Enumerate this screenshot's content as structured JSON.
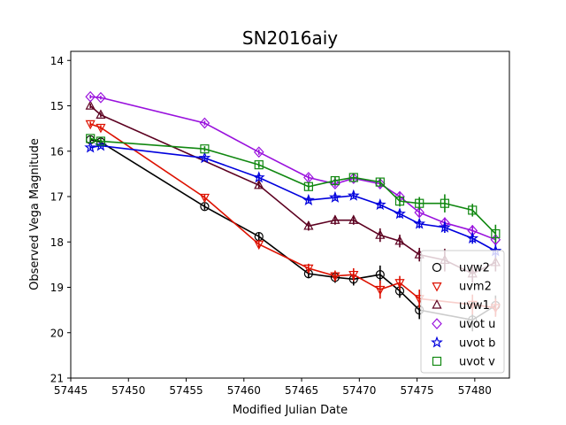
{
  "chart_data": {
    "type": "line",
    "title": "SN2016aiy",
    "xlabel": "Modified Julian Date",
    "ylabel": "Observed Vega Magnitude",
    "xlim": [
      57445,
      57483
    ],
    "ylim": [
      21,
      13.8
    ],
    "y_inverted": true,
    "xticks": [
      57445,
      57450,
      57455,
      57460,
      57465,
      57470,
      57475,
      57480
    ],
    "xtick_labels": [
      "57445",
      "57450",
      "57455",
      "57460",
      "57465",
      "57470",
      "57475",
      "57480"
    ],
    "yticks": [
      14,
      15,
      16,
      17,
      18,
      19,
      20,
      21
    ],
    "ytick_labels": [
      "14",
      "15",
      "16",
      "17",
      "18",
      "19",
      "20",
      "21"
    ],
    "grid": false,
    "legend_position": "lower-right",
    "series": [
      {
        "name": "uvw2",
        "color": "#000000",
        "marker": "circle",
        "x": [
          57446.7,
          57447.6,
          57456.6,
          57461.3,
          57465.6,
          57467.9,
          57469.5,
          57471.8,
          57473.5,
          57475.2,
          57479.8,
          57481.8
        ],
        "y": [
          15.75,
          15.8,
          17.22,
          17.88,
          18.7,
          18.78,
          18.82,
          18.72,
          19.08,
          19.5,
          19.72,
          19.4
        ],
        "err": [
          0.05,
          0.05,
          0.07,
          0.08,
          0.1,
          0.12,
          0.14,
          0.2,
          0.15,
          0.2,
          0.25,
          0.22
        ]
      },
      {
        "name": "uvm2",
        "color": "#dd1100",
        "marker": "triangle-down",
        "x": [
          57446.7,
          57447.6,
          57456.6,
          57461.3,
          57465.6,
          57467.9,
          57469.5,
          57471.8,
          57473.5,
          57475.2,
          57479.8,
          57481.8
        ],
        "y": [
          15.4,
          15.48,
          17.02,
          18.05,
          18.58,
          18.75,
          18.72,
          19.05,
          18.9,
          19.25,
          19.38,
          19.45
        ],
        "err": [
          0.05,
          0.05,
          0.06,
          0.09,
          0.1,
          0.12,
          0.14,
          0.2,
          0.15,
          0.2,
          0.22,
          0.2
        ]
      },
      {
        "name": "uvw1",
        "color": "#5c0020",
        "marker": "triangle-up",
        "x": [
          57446.7,
          57447.6,
          57461.3,
          57465.6,
          57467.9,
          57469.5,
          57471.8,
          57473.5,
          57475.2,
          57477.4,
          57479.8,
          57481.8
        ],
        "y": [
          15.0,
          15.2,
          16.75,
          17.65,
          17.52,
          17.52,
          17.85,
          17.98,
          18.28,
          18.4,
          18.7,
          18.45
        ],
        "err": [
          0.05,
          0.05,
          0.08,
          0.1,
          0.1,
          0.1,
          0.15,
          0.14,
          0.15,
          0.25,
          0.2,
          0.2
        ]
      },
      {
        "name": "uvot u",
        "color": "#9911dd",
        "marker": "diamond",
        "x": [
          57446.7,
          57447.6,
          57456.6,
          57461.3,
          57465.6,
          57467.9,
          57469.5,
          57471.8,
          57473.5,
          57475.2,
          57477.4,
          57479.8,
          57481.8
        ],
        "y": [
          14.8,
          14.82,
          15.38,
          16.02,
          16.58,
          16.72,
          16.6,
          16.72,
          17.0,
          17.35,
          17.58,
          17.75,
          17.95
        ],
        "err": [
          0.04,
          0.04,
          0.05,
          0.06,
          0.07,
          0.07,
          0.07,
          0.08,
          0.09,
          0.1,
          0.12,
          0.12,
          0.12
        ]
      },
      {
        "name": "uvot b",
        "color": "#0000dd",
        "marker": "star",
        "x": [
          57446.7,
          57447.6,
          57456.6,
          57461.3,
          57465.6,
          57467.9,
          57469.5,
          57471.8,
          57473.5,
          57475.2,
          57477.4,
          57479.8,
          57481.8
        ],
        "y": [
          15.92,
          15.88,
          16.15,
          16.58,
          17.08,
          17.02,
          16.98,
          17.18,
          17.38,
          17.6,
          17.68,
          17.92,
          18.2
        ],
        "err": [
          0.04,
          0.04,
          0.05,
          0.06,
          0.07,
          0.07,
          0.07,
          0.08,
          0.09,
          0.1,
          0.12,
          0.12,
          0.14
        ]
      },
      {
        "name": "uvot v",
        "color": "#118811",
        "marker": "square",
        "x": [
          57446.7,
          57447.6,
          57456.6,
          57461.3,
          57465.6,
          57467.9,
          57469.5,
          57471.8,
          57473.5,
          57475.2,
          57477.4,
          57479.8,
          57481.8
        ],
        "y": [
          15.72,
          15.78,
          15.95,
          16.3,
          16.78,
          16.65,
          16.58,
          16.68,
          17.1,
          17.15,
          17.15,
          17.3,
          17.82
        ],
        "err": [
          0.05,
          0.05,
          0.06,
          0.07,
          0.08,
          0.08,
          0.08,
          0.09,
          0.12,
          0.14,
          0.2,
          0.14,
          0.2
        ]
      }
    ]
  }
}
